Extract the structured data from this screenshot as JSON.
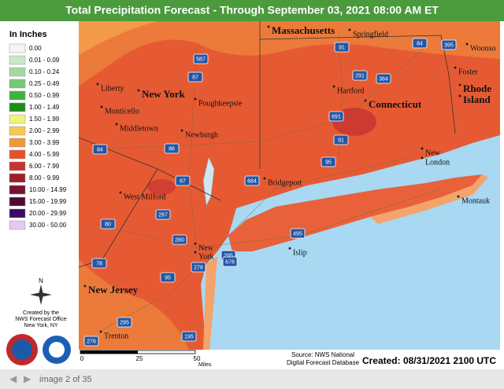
{
  "header": {
    "title": "Total Precipitation Forecast - Through September 03, 2021 08:00 AM ET"
  },
  "legend": {
    "title": "In Inches",
    "items": [
      {
        "label": "0.00",
        "color": "#f4f4f4"
      },
      {
        "label": "0.01 - 0.09",
        "color": "#c8e8c8"
      },
      {
        "label": "0.10 - 0.24",
        "color": "#a2d9a2"
      },
      {
        "label": "0.25 - 0.49",
        "color": "#78c878"
      },
      {
        "label": "0.50 - 0.99",
        "color": "#3cb43c"
      },
      {
        "label": "1.00 - 1.49",
        "color": "#1e8c1e"
      },
      {
        "label": "1.50 - 1.99",
        "color": "#f2f27a"
      },
      {
        "label": "2.00 - 2.99",
        "color": "#f5c850"
      },
      {
        "label": "3.00 - 3.99",
        "color": "#f0963c"
      },
      {
        "label": "4.00 - 5.99",
        "color": "#e6502d"
      },
      {
        "label": "6.00 - 7.99",
        "color": "#c83232"
      },
      {
        "label": "8.00 - 9.99",
        "color": "#a01e28"
      },
      {
        "label": "10.00 - 14.99",
        "color": "#781432"
      },
      {
        "label": "15.00 - 19.99",
        "color": "#500a32"
      },
      {
        "label": "20.00 - 29.99",
        "color": "#3c0a64"
      },
      {
        "label": "30.00 - 50.00",
        "color": "#e6c8f0"
      }
    ]
  },
  "credit": {
    "compass": "N",
    "lines": [
      "Created by the",
      "NWS Forecast Office",
      "New York, NY"
    ]
  },
  "places": [
    "Massachusetts",
    "Springfield",
    "Woonso",
    "Foster",
    "Rhode",
    "Island",
    "Hartford",
    "Connecticut",
    "New",
    "London",
    "Montauk",
    "Bridgeport",
    "Liberty",
    "New York",
    "Monticello",
    "Poughkeepsie",
    "Middletown",
    "Newburgh",
    "West Milford",
    "New",
    "York",
    "Islip",
    "New Jersey",
    "Trenton"
  ],
  "highways": [
    "587",
    "87",
    "91",
    "84",
    "395",
    "291",
    "384",
    "691",
    "91",
    "95",
    "84",
    "86",
    "87",
    "684",
    "287",
    "80",
    "280",
    "295",
    "495",
    "678",
    "78",
    "95",
    "278",
    "295",
    "276",
    "195"
  ],
  "scale": {
    "labels": [
      "0",
      "25",
      "50"
    ],
    "unit": "Miles"
  },
  "source": [
    "Source: NWS National",
    "Digital Forecast Database"
  ],
  "created": "Created: 08/31/2021 2100 UTC",
  "nav": {
    "counter": "image 2 of 35"
  }
}
